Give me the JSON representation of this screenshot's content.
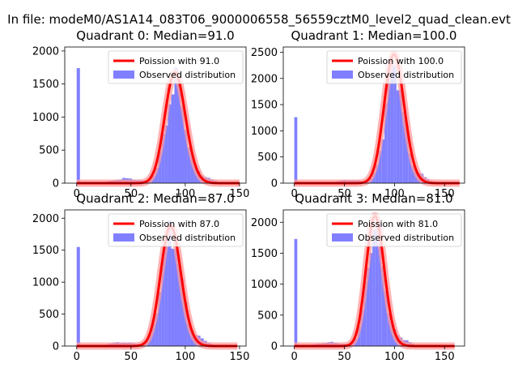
{
  "suptitle": "In file: modeM0/AS1A14_083T06_9000006558_56559cztM0_level2_quad_clean.evt",
  "colors": {
    "bars": "#8080ff",
    "fit": "#ff0000",
    "fit_glow": "#ff9999"
  },
  "chart_data": [
    {
      "type": "bar",
      "title": "Quadrant 0: Median=91.0",
      "xlim": [
        -11,
        156
      ],
      "ylim": [
        0,
        2060
      ],
      "xticks": [
        0,
        50,
        100,
        150
      ],
      "yticks": [
        0,
        500,
        1000,
        1500,
        2000
      ],
      "legend": {
        "location": "top-right",
        "fit_label": "Poission with 91.0",
        "hist_label": "Observed distribution"
      },
      "series": [
        {
          "name": "Observed distribution",
          "bin_width": 3,
          "zero_bin": 1740,
          "mean": 91,
          "sigma": 9,
          "peak": 1530,
          "tail_bump": 70
        },
        {
          "name": "Poission with 91.0",
          "lambda": 91.0,
          "amplitude": 1670,
          "x_range": [
            0,
            150
          ]
        }
      ]
    },
    {
      "type": "bar",
      "title": "Quadrant 1: Median=100.0",
      "xlim": [
        -11,
        170
      ],
      "ylim": [
        0,
        2600
      ],
      "xticks": [
        0,
        50,
        100,
        150
      ],
      "yticks": [
        0,
        500,
        1000,
        1500,
        2000,
        2500
      ],
      "legend": {
        "location": "top-right",
        "fit_label": "Poission with 100.0",
        "hist_label": "Observed distribution"
      },
      "series": [
        {
          "name": "Observed distribution",
          "bin_width": 3,
          "zero_bin": 1260,
          "mean": 100,
          "sigma": 9,
          "peak": 2290,
          "tail_bump": 60
        },
        {
          "name": "Poission with 100.0",
          "lambda": 100.0,
          "amplitude": 2460,
          "x_range": [
            0,
            165
          ]
        }
      ]
    },
    {
      "type": "bar",
      "title": "Quadrant 2: Median=87.0",
      "xlim": [
        -11,
        156
      ],
      "ylim": [
        0,
        2130
      ],
      "xticks": [
        0,
        50,
        100,
        150
      ],
      "yticks": [
        0,
        500,
        1000,
        1500,
        2000
      ],
      "legend": {
        "location": "top-right",
        "fit_label": "Poission with 87.0",
        "hist_label": "Observed distribution"
      },
      "series": [
        {
          "name": "Observed distribution",
          "bin_width": 3,
          "zero_bin": 1550,
          "mean": 87,
          "sigma": 9,
          "peak": 1820,
          "tail_bump": 60
        },
        {
          "name": "Poission with 87.0",
          "lambda": 87.0,
          "amplitude": 1880,
          "x_range": [
            0,
            148
          ]
        }
      ]
    },
    {
      "type": "bar",
      "title": "Quadrant 3: Median=81.0",
      "xlim": [
        -11,
        170
      ],
      "ylim": [
        0,
        2200
      ],
      "xticks": [
        0,
        50,
        100,
        150
      ],
      "yticks": [
        0,
        500,
        1000,
        1500,
        2000
      ],
      "legend": {
        "location": "top-right",
        "fit_label": "Poission with 81.0",
        "hist_label": "Observed distribution"
      },
      "series": [
        {
          "name": "Observed distribution",
          "bin_width": 3,
          "zero_bin": 1730,
          "mean": 81,
          "sigma": 8.5,
          "peak": 1970,
          "tail_bump": 60
        },
        {
          "name": "Poission with 81.0",
          "lambda": 81.0,
          "amplitude": 2100,
          "x_range": [
            0,
            160
          ]
        }
      ]
    }
  ]
}
